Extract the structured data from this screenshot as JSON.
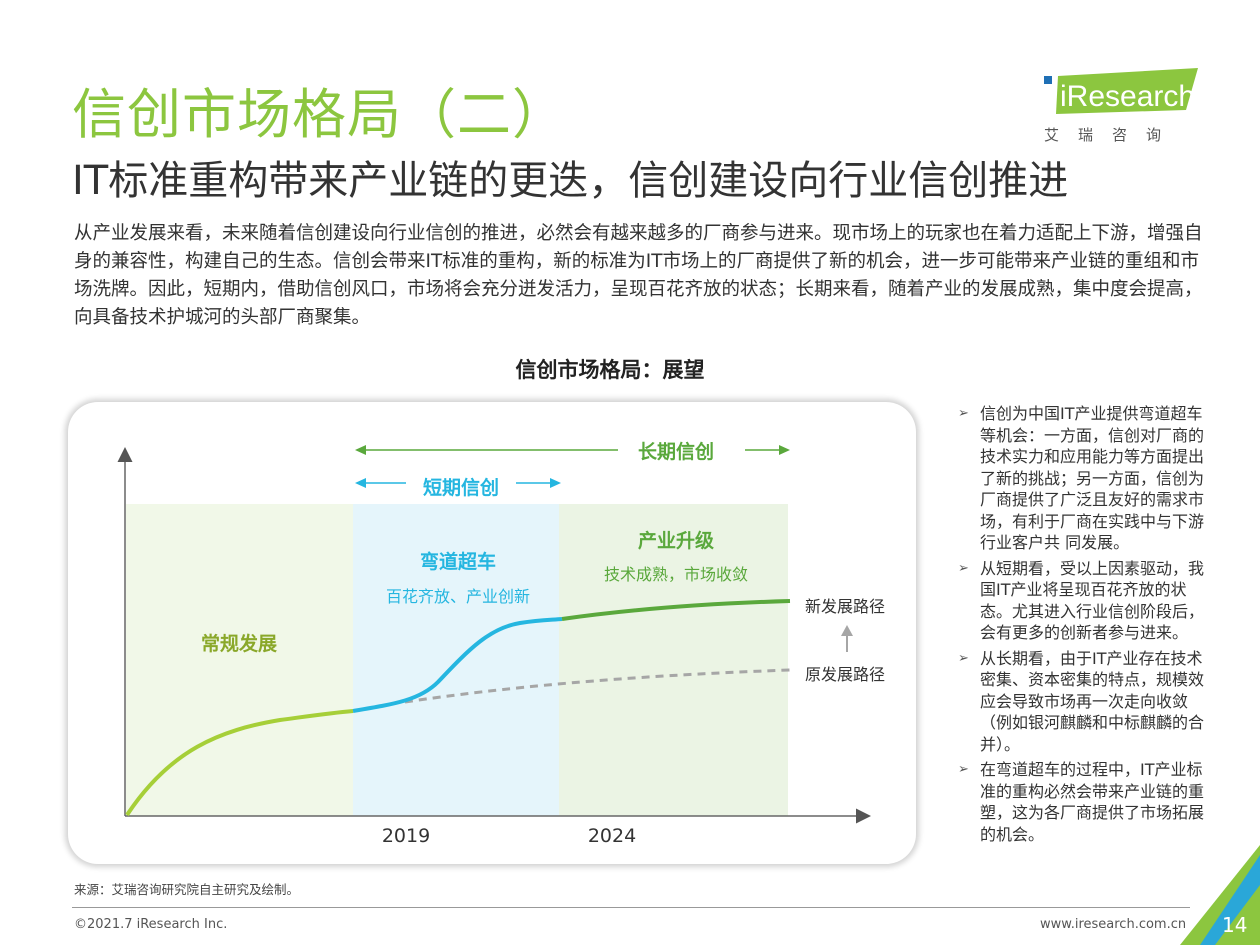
{
  "header": {
    "title": "信创市场格局（二）",
    "subtitle": "IT标准重构带来产业链的更迭，信创建设向行业信创推进"
  },
  "logo": {
    "brand": "iResearch",
    "tagline": "艾瑞咨询",
    "color": "#8cc63f"
  },
  "intro": "从产业发展来看，未来随着信创建设向行业信创的推进，必然会有越来越多的厂商参与进来。现市场上的玩家也在着力适配上下游，增强自身的兼容性，构建自己的生态。信创会带来IT标准的重构，新的标准为IT市场上的厂商提供了新的机会，进一步可能带来产业链的重组和市场洗牌。因此，短期内，借助信创风口，市场将会充分迸发活力，呈现百花齐放的状态；长期来看，随着产业的发展成熟，集中度会提高，向具备技术护城河的头部厂商聚集。",
  "diagram": {
    "title": "信创市场格局：展望",
    "long_term": "长期信创",
    "short_term": "短期信创",
    "phase1": {
      "title": "常规发展"
    },
    "phase2": {
      "title": "弯道超车",
      "desc": "百花齐放、产业创新"
    },
    "phase3": {
      "title": "产业升级",
      "desc": "技术成熟，市场收敛"
    },
    "new_path": "新发展路径",
    "old_path": "原发展路径",
    "x_ticks": [
      "2019",
      "2024"
    ],
    "colors": {
      "green": "#5aa83c",
      "lime": "#a6cf38",
      "cyan": "#25b6e0",
      "grey": "#a6a6a6"
    }
  },
  "bullets": [
    "信创为中国IT产业提供弯道超车等机会：一方面，信创对厂商的技术实力和应用能力等方面提出了新的挑战；另一方面，信创为厂商提供了广泛且友好的需求市场，有利于厂商在实践中与下游行业客户共 同发展。",
    "从短期看，受以上因素驱动，我国IT产业将呈现百花齐放的状态。尤其进入行业信创阶段后，会有更多的创新者参与进来。",
    "从长期看，由于IT产业存在技术密集、资本密集的特点，规模效应会导致市场再一次走向收敛（例如银河麒麟和中标麒麟的合并）。",
    "在弯道超车的过程中，IT产业标准的重构必然会带来产业链的重塑，这为各厂商提供了市场拓展的机会。"
  ],
  "footer": {
    "source": "来源：艾瑞咨询研究院自主研究及绘制。",
    "copyright": "©2021.7 iResearch Inc.",
    "url": "www.iresearch.com.cn",
    "page": "14"
  }
}
